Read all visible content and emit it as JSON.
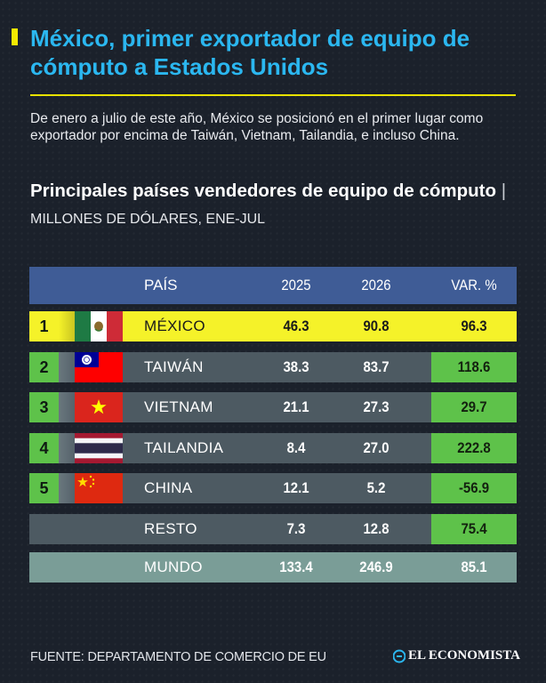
{
  "title": "México, primer exportador de equipo de cómputo a Estados Unidos",
  "intro": "De enero a julio de este año, México se posicionó en el primer lugar como exportador por encima de Taiwán, Vietnam, Tailandia, e incluso China.",
  "subtitle_bold": "Principales países vendedores de equipo de cómputo",
  "subtitle_sep": " | ",
  "subtitle_unit": "MILLONES DE DÓLARES, ENE-JUL",
  "source": "FUENTE: DEPARTAMENTO DE COMERCIO DE EU",
  "brand": "EL ECONOMISTA",
  "colors": {
    "title": "#2bb7f0",
    "accent": "#f5e900",
    "header": "#3f5c96",
    "row": "#4d5a62",
    "total_row": "#7a9d97",
    "positive": "#5ec24a",
    "highlight": "#f5f229"
  },
  "chart_data": {
    "type": "table",
    "columns": [
      "PAÍS",
      "2025",
      "2026",
      "VAR. %"
    ],
    "rows": [
      {
        "rank": "1",
        "country": "MÉXICO",
        "flag": "mexico-flag",
        "v2025": "46.3",
        "v2026": "90.8",
        "var": "96.3"
      },
      {
        "rank": "2",
        "country": "TAIWÁN",
        "flag": "taiwan-flag",
        "v2025": "38.3",
        "v2026": "83.7",
        "var": "118.6"
      },
      {
        "rank": "3",
        "country": "VIETNAM",
        "flag": "vietnam-flag",
        "v2025": "21.1",
        "v2026": "27.3",
        "var": "29.7"
      },
      {
        "rank": "4",
        "country": "TAILANDIA",
        "flag": "thailand-flag",
        "v2025": "8.4",
        "v2026": "27.0",
        "var": "222.8"
      },
      {
        "rank": "5",
        "country": "CHINA",
        "flag": "china-flag",
        "v2025": "12.1",
        "v2026": "5.2",
        "var": "-56.9"
      },
      {
        "rank": "",
        "country": "RESTO",
        "flag": "",
        "v2025": "7.3",
        "v2026": "12.8",
        "var": "75.4"
      },
      {
        "rank": "",
        "country": "MUNDO",
        "flag": "",
        "v2025": "133.4",
        "v2026": "246.9",
        "var": "85.1"
      }
    ]
  }
}
